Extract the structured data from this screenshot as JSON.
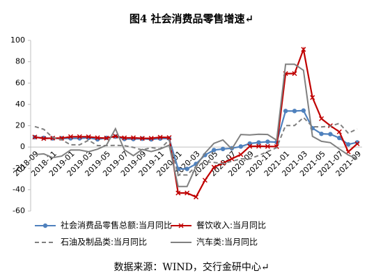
{
  "chart_data": {
    "type": "line",
    "title": "图4 社会消费品零售增速↵",
    "source": "数据来源：WIND，交行金研中心↵",
    "categories": [
      "2018-09",
      null,
      "2018-11",
      null,
      "2019-01",
      null,
      "2019-03",
      null,
      "2019-05",
      null,
      "2019-07",
      null,
      "2019-09",
      null,
      "2019-11",
      null,
      "2020-01",
      null,
      "2020-03",
      null,
      "2020-05",
      null,
      "2020-07",
      null,
      "2020-09",
      null,
      "2020-11",
      null,
      "2021-01",
      null,
      "2021-03",
      null,
      "2021-05",
      null,
      "2021-07",
      null,
      "2021-09"
    ],
    "ylim": [
      -60,
      100
    ],
    "yticks": [
      -60,
      -40,
      -20,
      0,
      20,
      40,
      60,
      80,
      100
    ],
    "legend": "bottom",
    "series": [
      {
        "name": "社会消费品零售总额:当月同比",
        "color": "#4f81bd",
        "marker": "circle",
        "dash": false,
        "values": [
          9.2,
          8.6,
          8.1,
          8.2,
          8.2,
          8.2,
          8.7,
          7.2,
          8.6,
          9.8,
          7.6,
          7.5,
          7.8,
          7.2,
          8.0,
          8.0,
          -20.5,
          -20.5,
          -15.8,
          -7.5,
          -2.8,
          -1.8,
          -1.1,
          0.5,
          3.3,
          4.3,
          5.0,
          4.6,
          33.8,
          33.8,
          34.2,
          17.7,
          12.4,
          12.1,
          8.5,
          2.5,
          4.4
        ]
      },
      {
        "name": "餐饮收入:当月同比",
        "color": "#c00000",
        "marker": "x",
        "dash": false,
        "values": [
          9.4,
          8.0,
          8.4,
          8.3,
          9.7,
          9.7,
          9.6,
          8.7,
          8.4,
          10.2,
          8.6,
          8.7,
          8.2,
          8.2,
          9.2,
          8.9,
          -43.1,
          -43.1,
          -46.8,
          -31.1,
          -18.9,
          -15.2,
          -11.0,
          -7.0,
          0.7,
          0.8,
          0.6,
          0.4,
          68.9,
          68.9,
          91.6,
          46.4,
          26.6,
          20.0,
          14.3,
          -4.5,
          3.1
        ]
      },
      {
        "name": "石油及制品类:当月同比",
        "color": "#7f7f7f",
        "marker": null,
        "dash": true,
        "values": [
          19.2,
          16.6,
          8.9,
          6.9,
          2.1,
          2.1,
          6.4,
          1.4,
          1.4,
          1.6,
          1.3,
          -0.3,
          -2.7,
          -0.5,
          -1.7,
          6.6,
          -26.2,
          -26.2,
          -18.0,
          -13.8,
          -14.4,
          -15.4,
          -13.3,
          -11.1,
          -11.1,
          -7.9,
          -4.2,
          -0.6,
          20.2,
          20.2,
          27.7,
          19.1,
          18.8,
          19.6,
          22.2,
          13.0,
          16.9
        ]
      },
      {
        "name": "汽车类:当月同比",
        "color": "#808080",
        "marker": null,
        "dash": false,
        "values": [
          -7.1,
          -6.4,
          -10.0,
          -8.5,
          -2.8,
          -2.8,
          -4.4,
          -2.0,
          1.8,
          17.2,
          -2.6,
          -8.1,
          -2.2,
          -4.2,
          -1.8,
          1.8,
          -37.0,
          -37.0,
          -18.1,
          -5.6,
          3.5,
          6.7,
          -1.8,
          11.8,
          11.3,
          12.0,
          11.8,
          6.4,
          77.6,
          77.6,
          72.0,
          10.1,
          5.4,
          4.1,
          -1.8,
          -7.4,
          -11.3
        ]
      }
    ]
  }
}
